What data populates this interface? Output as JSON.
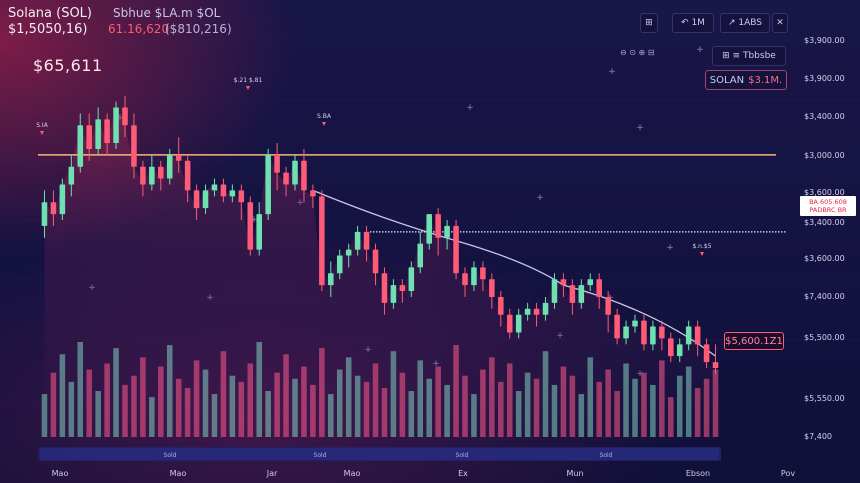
{
  "header": {
    "title": "Solana (SOL)",
    "title_sub": "Sbhue $LA.m  $OL",
    "price_line": "$1,5050,16)",
    "price_red": "61.16,620",
    "price_gray": "($810,216)",
    "big_price": "$65,611"
  },
  "toolbar": {
    "icon_btn": "⊞",
    "timeframe_btn": "↶  1M",
    "indicators_btn": "↗  1ABS",
    "close_btn": "✕",
    "zoom_ctrl": "⊖ ⊙ ⊕ ⊟",
    "settings_btn": "⊞  ≡ Tbbsbe",
    "symbol_label": "SOLAN",
    "symbol_value": "$3.1M."
  },
  "annotations": {
    "right_box_line1": "BA 605.608",
    "right_box_line2": "PADBRC BR",
    "price_box": "$5,600.1Z1",
    "peak_label_1": "S.IA",
    "peak_label_2": "$.21 $.81",
    "peak_label_3": "S.BA",
    "peak_label_4": "$.n.$5"
  },
  "colors": {
    "up": "#6fe0b0",
    "down": "#ff5a76",
    "support_line": "#f5b87a",
    "resistance_line": "#e8e6ff",
    "trend_line": "#c9c6e8"
  },
  "chart_data": {
    "type": "candlestick",
    "y_axis_labels": [
      "$3,900.00",
      "$3,900.00",
      "$3,400.00",
      "$3,000.00",
      "$3,600.00",
      "$3,400.00",
      "$3,600.00",
      "$7,400.00",
      "$5,500.00",
      "$5,550.00",
      "$7,400"
    ],
    "x_axis_labels": [
      "Mao",
      "Mao",
      "Jar",
      "Mao",
      "Ex",
      "Mun",
      "Ebson",
      "Pov"
    ],
    "navigator_labels": [
      "Sold",
      "Sold",
      "Sold",
      "Sold"
    ],
    "ohlc_scale": [
      0,
      100
    ],
    "candles": [
      [
        48,
        56,
        44,
        60
      ],
      [
        56,
        52,
        48,
        60
      ],
      [
        52,
        62,
        50,
        64
      ],
      [
        62,
        68,
        58,
        72
      ],
      [
        68,
        82,
        66,
        86
      ],
      [
        82,
        74,
        70,
        86
      ],
      [
        74,
        84,
        72,
        88
      ],
      [
        84,
        76,
        72,
        86
      ],
      [
        76,
        88,
        74,
        90
      ],
      [
        88,
        82,
        78,
        92
      ],
      [
        82,
        68,
        64,
        86
      ],
      [
        68,
        62,
        58,
        70
      ],
      [
        62,
        68,
        60,
        72
      ],
      [
        68,
        64,
        60,
        70
      ],
      [
        64,
        72,
        62,
        74
      ],
      [
        72,
        70,
        66,
        78
      ],
      [
        70,
        60,
        56,
        72
      ],
      [
        60,
        54,
        50,
        62
      ],
      [
        54,
        60,
        52,
        62
      ],
      [
        60,
        62,
        58,
        64
      ],
      [
        62,
        58,
        56,
        64
      ],
      [
        58,
        60,
        56,
        62
      ],
      [
        60,
        56,
        50,
        62
      ],
      [
        56,
        40,
        38,
        58
      ],
      [
        40,
        52,
        38,
        56
      ],
      [
        52,
        72,
        50,
        74
      ],
      [
        72,
        66,
        60,
        76
      ],
      [
        66,
        62,
        58,
        68
      ],
      [
        62,
        70,
        60,
        72
      ],
      [
        70,
        60,
        56,
        74
      ],
      [
        60,
        58,
        54,
        62
      ],
      [
        58,
        28,
        26,
        60
      ],
      [
        28,
        32,
        24,
        36
      ],
      [
        32,
        38,
        30,
        40
      ],
      [
        38,
        40,
        34,
        42
      ],
      [
        40,
        46,
        38,
        48
      ],
      [
        46,
        40,
        36,
        48
      ],
      [
        40,
        32,
        28,
        42
      ],
      [
        32,
        22,
        18,
        34
      ],
      [
        22,
        28,
        20,
        30
      ],
      [
        28,
        26,
        22,
        30
      ],
      [
        26,
        34,
        24,
        36
      ],
      [
        34,
        42,
        32,
        46
      ],
      [
        42,
        52,
        40,
        52
      ],
      [
        52,
        44,
        38,
        54
      ],
      [
        44,
        48,
        40,
        50
      ],
      [
        48,
        32,
        30,
        50
      ],
      [
        32,
        28,
        24,
        34
      ],
      [
        28,
        34,
        26,
        36
      ],
      [
        34,
        30,
        26,
        36
      ],
      [
        30,
        24,
        20,
        32
      ],
      [
        24,
        18,
        14,
        26
      ],
      [
        18,
        12,
        10,
        20
      ],
      [
        12,
        18,
        10,
        20
      ],
      [
        18,
        20,
        16,
        22
      ],
      [
        20,
        18,
        14,
        22
      ],
      [
        18,
        22,
        16,
        24
      ],
      [
        22,
        30,
        20,
        32
      ],
      [
        30,
        28,
        24,
        32
      ],
      [
        28,
        22,
        18,
        30
      ],
      [
        22,
        28,
        20,
        30
      ],
      [
        28,
        30,
        26,
        32
      ],
      [
        30,
        24,
        20,
        32
      ],
      [
        24,
        18,
        12,
        26
      ],
      [
        18,
        10,
        8,
        20
      ],
      [
        10,
        14,
        8,
        16
      ],
      [
        14,
        16,
        12,
        18
      ],
      [
        16,
        8,
        6,
        18
      ],
      [
        8,
        14,
        6,
        16
      ],
      [
        14,
        10,
        6,
        16
      ],
      [
        10,
        4,
        2,
        12
      ],
      [
        4,
        8,
        2,
        10
      ],
      [
        8,
        14,
        6,
        16
      ],
      [
        14,
        8,
        4,
        16
      ],
      [
        8,
        2,
        0,
        10
      ],
      [
        2,
        0,
        -2,
        8
      ]
    ],
    "volume": [
      28,
      42,
      54,
      36,
      62,
      44,
      30,
      48,
      58,
      34,
      40,
      52,
      26,
      46,
      60,
      38,
      32,
      50,
      44,
      28,
      56,
      40,
      36,
      48,
      62,
      30,
      42,
      54,
      38,
      46,
      34,
      58,
      28,
      44,
      52,
      40,
      36,
      48,
      32,
      56,
      42,
      30,
      50,
      38,
      46,
      34,
      60,
      40,
      28,
      44,
      52,
      36,
      48,
      30,
      42,
      38,
      56,
      34,
      46,
      40,
      28,
      52,
      36,
      44,
      30,
      48,
      38,
      42,
      34,
      50,
      26,
      40,
      46,
      32,
      38,
      44
    ],
    "support_level": 72,
    "resistance_level": 46
  }
}
